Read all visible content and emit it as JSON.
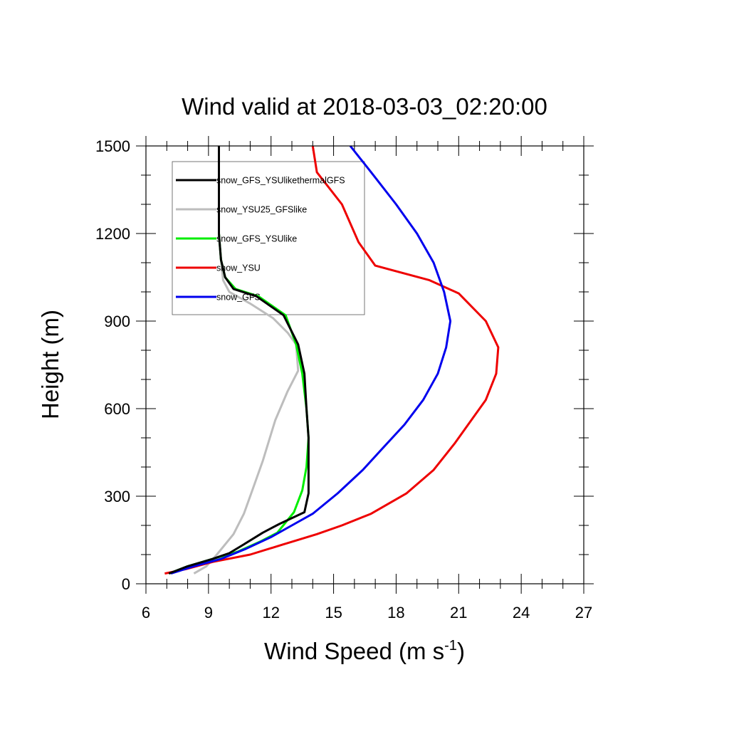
{
  "chart_data": {
    "type": "line",
    "title": "Wind valid at 2018-03-03_02:20:00",
    "xlabel": "Wind Speed (m s",
    "xlabel_superscript": "-1",
    "xlabel_suffix": ")",
    "ylabel": "Height (m)",
    "xlim": [
      6,
      27
    ],
    "ylim": [
      0,
      1500
    ],
    "x_ticks": [
      "6",
      "9",
      "12",
      "15",
      "18",
      "21",
      "24",
      "27"
    ],
    "y_ticks": [
      "0",
      "300",
      "600",
      "900",
      "1200",
      "1500"
    ],
    "legend_position": "top-left",
    "series": [
      {
        "name": "snow_GFS_YSUlikethermalGFS",
        "color": "#000000",
        "points": [
          [
            7.1,
            35
          ],
          [
            8.0,
            60
          ],
          [
            9.2,
            85
          ],
          [
            10.0,
            105
          ],
          [
            10.7,
            135
          ],
          [
            11.6,
            175
          ],
          [
            12.4,
            205
          ],
          [
            13.6,
            245
          ],
          [
            13.8,
            310
          ],
          [
            13.8,
            400
          ],
          [
            13.8,
            500
          ],
          [
            13.7,
            600
          ],
          [
            13.6,
            720
          ],
          [
            13.3,
            820
          ],
          [
            12.6,
            920
          ],
          [
            11.3,
            985
          ],
          [
            10.2,
            1010
          ],
          [
            9.8,
            1050
          ],
          [
            9.6,
            1110
          ],
          [
            9.5,
            1200
          ],
          [
            9.5,
            1350
          ],
          [
            9.5,
            1500
          ]
        ]
      },
      {
        "name": "snow_YSU25_GFSlike",
        "color": "#bdbdbd",
        "points": [
          [
            8.3,
            35
          ],
          [
            8.9,
            60
          ],
          [
            9.4,
            100
          ],
          [
            10.2,
            170
          ],
          [
            10.7,
            240
          ],
          [
            11.1,
            320
          ],
          [
            11.6,
            420
          ],
          [
            12.2,
            560
          ],
          [
            12.8,
            660
          ],
          [
            13.3,
            730
          ],
          [
            13.2,
            820
          ],
          [
            12.8,
            860
          ],
          [
            12.1,
            910
          ],
          [
            11.0,
            960
          ],
          [
            10.0,
            1000
          ],
          [
            9.7,
            1040
          ],
          [
            9.6,
            1110
          ],
          [
            9.5,
            1200
          ],
          [
            9.5,
            1350
          ],
          [
            9.5,
            1500
          ]
        ]
      },
      {
        "name": "snow_GFS_YSUlike",
        "color": "#00ee00",
        "points": [
          [
            7.1,
            35
          ],
          [
            8.0,
            60
          ],
          [
            9.2,
            85
          ],
          [
            10.4,
            110
          ],
          [
            11.5,
            145
          ],
          [
            12.3,
            175
          ],
          [
            13.1,
            245
          ],
          [
            13.5,
            320
          ],
          [
            13.7,
            400
          ],
          [
            13.8,
            500
          ],
          [
            13.7,
            600
          ],
          [
            13.5,
            720
          ],
          [
            13.2,
            820
          ],
          [
            12.7,
            920
          ],
          [
            11.4,
            985
          ],
          [
            10.3,
            1010
          ],
          [
            9.8,
            1050
          ],
          [
            9.6,
            1110
          ],
          [
            9.5,
            1200
          ],
          [
            9.5,
            1350
          ],
          [
            9.5,
            1500
          ]
        ]
      },
      {
        "name": "snow_YSU",
        "color": "#ee0000",
        "points": [
          [
            6.9,
            35
          ],
          [
            7.9,
            50
          ],
          [
            9.2,
            75
          ],
          [
            11.0,
            100
          ],
          [
            12.6,
            135
          ],
          [
            14.2,
            170
          ],
          [
            15.4,
            200
          ],
          [
            16.8,
            240
          ],
          [
            18.5,
            310
          ],
          [
            19.8,
            390
          ],
          [
            20.8,
            480
          ],
          [
            21.6,
            560
          ],
          [
            22.3,
            630
          ],
          [
            22.8,
            720
          ],
          [
            22.9,
            810
          ],
          [
            22.3,
            900
          ],
          [
            21.0,
            995
          ],
          [
            19.6,
            1040
          ],
          [
            17.0,
            1090
          ],
          [
            16.2,
            1170
          ],
          [
            15.4,
            1300
          ],
          [
            14.2,
            1410
          ],
          [
            14.0,
            1500
          ]
        ]
      },
      {
        "name": "snow_GFS",
        "color": "#0000ee",
        "points": [
          [
            7.2,
            35
          ],
          [
            8.3,
            60
          ],
          [
            9.6,
            85
          ],
          [
            10.8,
            120
          ],
          [
            12.0,
            160
          ],
          [
            13.0,
            200
          ],
          [
            14.0,
            240
          ],
          [
            15.2,
            310
          ],
          [
            16.4,
            390
          ],
          [
            17.3,
            460
          ],
          [
            18.4,
            545
          ],
          [
            19.3,
            630
          ],
          [
            20.0,
            720
          ],
          [
            20.4,
            810
          ],
          [
            20.6,
            900
          ],
          [
            20.3,
            1000
          ],
          [
            19.8,
            1100
          ],
          [
            19.0,
            1200
          ],
          [
            18.0,
            1300
          ],
          [
            16.8,
            1410
          ],
          [
            15.8,
            1500
          ]
        ]
      }
    ]
  }
}
